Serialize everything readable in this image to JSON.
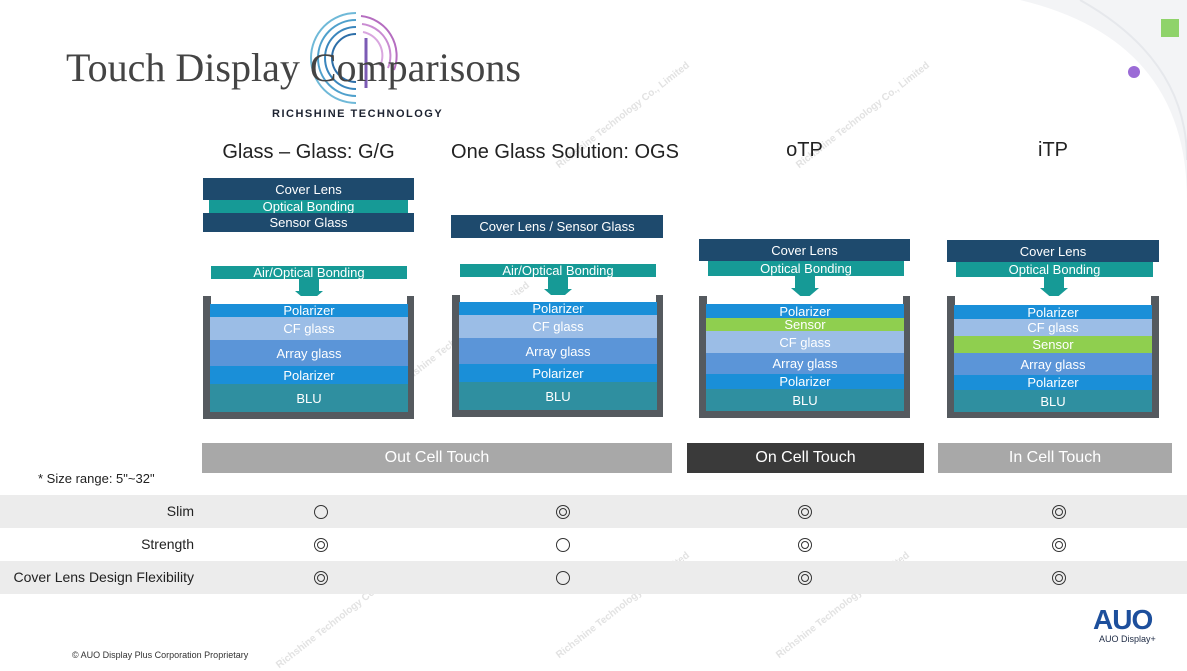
{
  "title": "Touch Display Comparisons",
  "logo_text": "RICHSHINE TECHNOLOGY",
  "watermark": "Richshine Technology Co., Limited",
  "columns": [
    {
      "heading": "Glass – Glass: G/G",
      "top_layers": [
        "Cover Lens",
        "Optical Bonding",
        "Sensor Glass"
      ],
      "bonding": "Air/Optical Bonding",
      "stack": [
        "Polarizer",
        "CF glass",
        "Array glass",
        "Polarizer",
        "BLU"
      ]
    },
    {
      "heading": "One Glass Solution: OGS",
      "top_layers": [
        "Cover Lens / Sensor Glass"
      ],
      "bonding": "Air/Optical Bonding",
      "stack": [
        "Polarizer",
        "CF glass",
        "Array glass",
        "Polarizer",
        "BLU"
      ]
    },
    {
      "heading": "oTP",
      "top_layers": [
        "Cover Lens",
        "Optical Bonding"
      ],
      "stack": [
        "Polarizer",
        "Sensor",
        "CF glass",
        "Array glass",
        "Polarizer",
        "BLU"
      ]
    },
    {
      "heading": "iTP",
      "top_layers": [
        "Cover Lens",
        "Optical Bonding"
      ],
      "stack": [
        "Polarizer",
        "CF glass",
        "Sensor",
        "Array glass",
        "Polarizer",
        "BLU"
      ]
    }
  ],
  "categories": [
    "Out Cell Touch",
    "On Cell Touch",
    "In Cell Touch"
  ],
  "size_note": "* Size range: 5\"~32\"",
  "comparison": {
    "rows": [
      {
        "label": "Slim",
        "values": [
          "good",
          "excellent",
          "excellent",
          "excellent"
        ]
      },
      {
        "label": "Strength",
        "values": [
          "excellent",
          "good",
          "excellent",
          "excellent"
        ]
      },
      {
        "label": "Cover Lens Design Flexibility",
        "values": [
          "excellent",
          "good",
          "excellent",
          "excellent"
        ]
      }
    ]
  },
  "footer": {
    "copyright": "© AUO Display Plus Corporation Proprietary",
    "brand": "AUO",
    "brand_sub": "AUO Display+"
  },
  "colors": {
    "navy": "#1e4a6d",
    "teal": "#169a96",
    "polarizer": "#1a8fd8",
    "cf_glass": "#9bbde6",
    "array_glass": "#5b95d8",
    "blu": "#2f8fa0",
    "sensor": "#8fcf4f",
    "frame": "#555a5f",
    "out_cell": "#a8a8a8",
    "on_cell": "#3a3a3a",
    "in_cell": "#a8a8a8"
  }
}
